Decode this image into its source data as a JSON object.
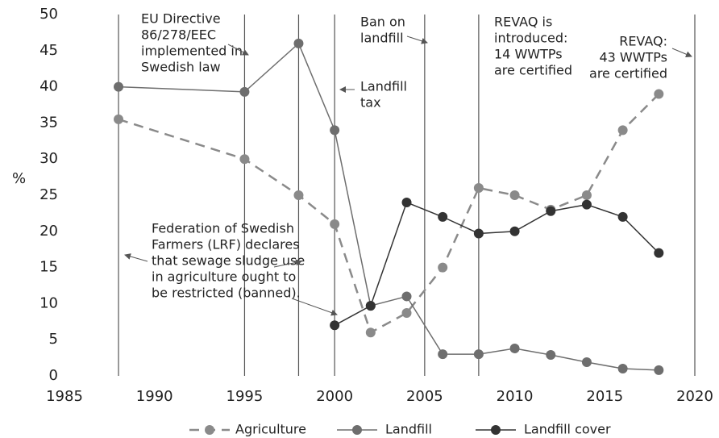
{
  "chart_data": {
    "type": "line",
    "y_label": "%",
    "x": [
      1988,
      1995,
      1998,
      2000,
      2002,
      2004,
      2006,
      2008,
      2010,
      2012,
      2014,
      2016,
      2018
    ],
    "series": [
      {
        "name": "Agriculture",
        "color": "#8a8a8a",
        "dashed": true,
        "values": [
          35.5,
          30,
          25,
          21,
          6,
          8.7,
          15,
          26,
          25,
          23,
          25,
          34,
          39
        ]
      },
      {
        "name": "Landfill",
        "color": "#6e6e6e",
        "dashed": false,
        "values": [
          40,
          39.3,
          46,
          34,
          9.7,
          11,
          3,
          3,
          3.8,
          2.9,
          1.9,
          1,
          0.8
        ]
      },
      {
        "name": "Landfill cover",
        "color": "#333333",
        "dashed": false,
        "values": [
          null,
          null,
          null,
          7,
          9.7,
          24,
          22,
          19.7,
          20,
          22.8,
          23.7,
          22,
          17
        ]
      }
    ],
    "event_years": [
      1988,
      1995,
      1998,
      2000,
      2005,
      2008,
      2020
    ],
    "annotations": [
      [
        "EU Directive",
        "86/278/EEC",
        "implemented in",
        "Swedish law"
      ],
      [
        "Landfill",
        "tax"
      ],
      [
        "Ban on",
        "landfill"
      ],
      [
        "REVAQ is",
        "introduced:",
        "14 WWTPs",
        "are certified"
      ],
      [
        "REVAQ:",
        "43 WWTPs",
        "are certified"
      ],
      [
        "Federation of Swedish",
        "Farmers (LRF) declares",
        "that sewage sludge use",
        "in agriculture ought to",
        "be restricted (banned)."
      ]
    ],
    "xlim": [
      1985,
      2020
    ],
    "xticks": [
      1985,
      1990,
      1995,
      2000,
      2005,
      2010,
      2015,
      2020
    ],
    "ylim": [
      0,
      50
    ],
    "yticks": [
      0,
      5,
      10,
      15,
      20,
      25,
      30,
      35,
      40,
      45,
      50
    ],
    "grid": false,
    "legend": "bottom"
  }
}
